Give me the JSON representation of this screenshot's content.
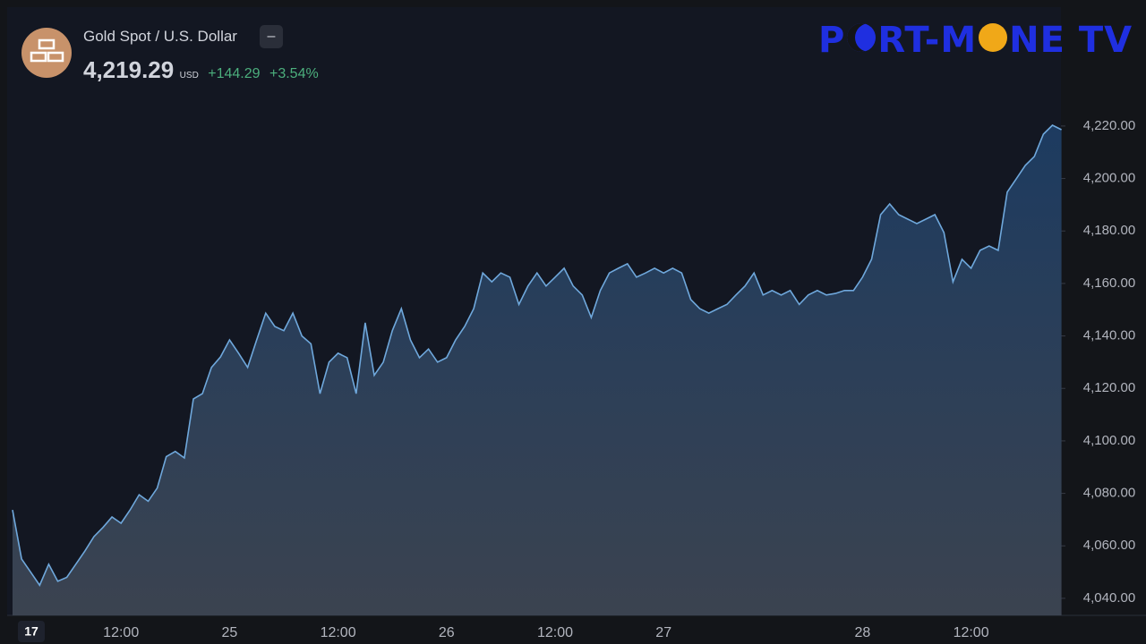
{
  "header": {
    "title": "Gold Spot / U.S. Dollar",
    "price": "4,219.29",
    "currency": "USD",
    "change": "+144.29",
    "change_percent": "+3.54%"
  },
  "brand": [
    "P",
    "RT-M",
    "NE TV"
  ],
  "chart_data": {
    "type": "area",
    "color": "#6fa8dc",
    "categories": [
      null,
      null,
      null,
      null,
      null,
      null,
      null,
      null,
      null,
      null,
      null,
      null,
      "12:00",
      null,
      null,
      null,
      null,
      null,
      null,
      null,
      null,
      null,
      null,
      null,
      "25",
      null,
      null,
      null,
      null,
      null,
      null,
      null,
      null,
      null,
      null,
      null,
      "12:00",
      null,
      null,
      null,
      null,
      null,
      null,
      null,
      null,
      null,
      null,
      null,
      "26",
      null,
      null,
      null,
      null,
      null,
      null,
      null,
      null,
      null,
      null,
      null,
      "12:00",
      null,
      null,
      null,
      null,
      null,
      null,
      null,
      null,
      null,
      null,
      null,
      "27",
      null,
      null,
      null,
      null,
      null,
      null,
      null,
      null,
      null,
      null,
      null,
      null,
      null,
      null,
      null,
      null,
      null,
      null,
      null,
      null,
      null,
      "28",
      null,
      null,
      null,
      null,
      null,
      null,
      null,
      null,
      null,
      null,
      null,
      "12:00",
      null,
      null,
      null,
      null,
      null,
      null,
      null,
      null,
      null,
      null
    ],
    "values": [
      4073.7,
      4055,
      4050,
      4045,
      4053,
      4046.5,
      4048,
      4053,
      4058,
      4063.5,
      4067,
      4071,
      4068.6,
      4073.7,
      4079.5,
      4077,
      4082,
      4094,
      4096,
      4093.5,
      4116,
      4118,
      4128,
      4132,
      4138.5,
      4133.4,
      4128,
      4138.5,
      4148.7,
      4143.6,
      4142,
      4148.7,
      4140,
      4137,
      4118,
      4130,
      4133.4,
      4131.7,
      4118,
      4145,
      4125,
      4130,
      4142,
      4150.4,
      4138.5,
      4131.7,
      4135,
      4130,
      4131.7,
      4138.5,
      4143.6,
      4150.4,
      4164,
      4160.6,
      4164,
      4162.4,
      4152,
      4159,
      4164,
      4159,
      4162.4,
      4165.8,
      4159,
      4155.6,
      4147,
      4157.3,
      4164,
      4165.8,
      4167.5,
      4162.4,
      4164,
      4165.8,
      4164,
      4165.8,
      4164,
      4153.9,
      4150.4,
      4148.7,
      4150.4,
      4152,
      4155.6,
      4159,
      4164,
      4155.6,
      4157.3,
      4155.6,
      4157.3,
      4152,
      4155.6,
      4157.3,
      4155.6,
      4156.2,
      4157.3,
      4157.3,
      4162.4,
      4169.2,
      4186.2,
      4190.3,
      4186.2,
      4184.5,
      4182.8,
      4184.5,
      4186.2,
      4179.4,
      4160.6,
      4169.2,
      4165.8,
      4172.6,
      4174.3,
      4172.6,
      4194.8,
      4199.9,
      4205,
      4208.4,
      4216.9,
      4220.3,
      4218.6
    ],
    "ylim": [
      4033.5,
      4265.3
    ],
    "yticks": [
      {
        "value": 4040,
        "label": "4,040.00"
      },
      {
        "value": 4060,
        "label": "4,060.00"
      },
      {
        "value": 4080,
        "label": "4,080.00"
      },
      {
        "value": 4100,
        "label": "4,100.00"
      },
      {
        "value": 4120,
        "label": "4,120.00"
      },
      {
        "value": 4140,
        "label": "4,140.00"
      },
      {
        "value": 4160,
        "label": "4,160.00"
      },
      {
        "value": 4180,
        "label": "4,180.00"
      },
      {
        "value": 4200,
        "label": "4,200.00"
      },
      {
        "value": 4220,
        "label": "4,220.00"
      }
    ],
    "grid": false
  }
}
